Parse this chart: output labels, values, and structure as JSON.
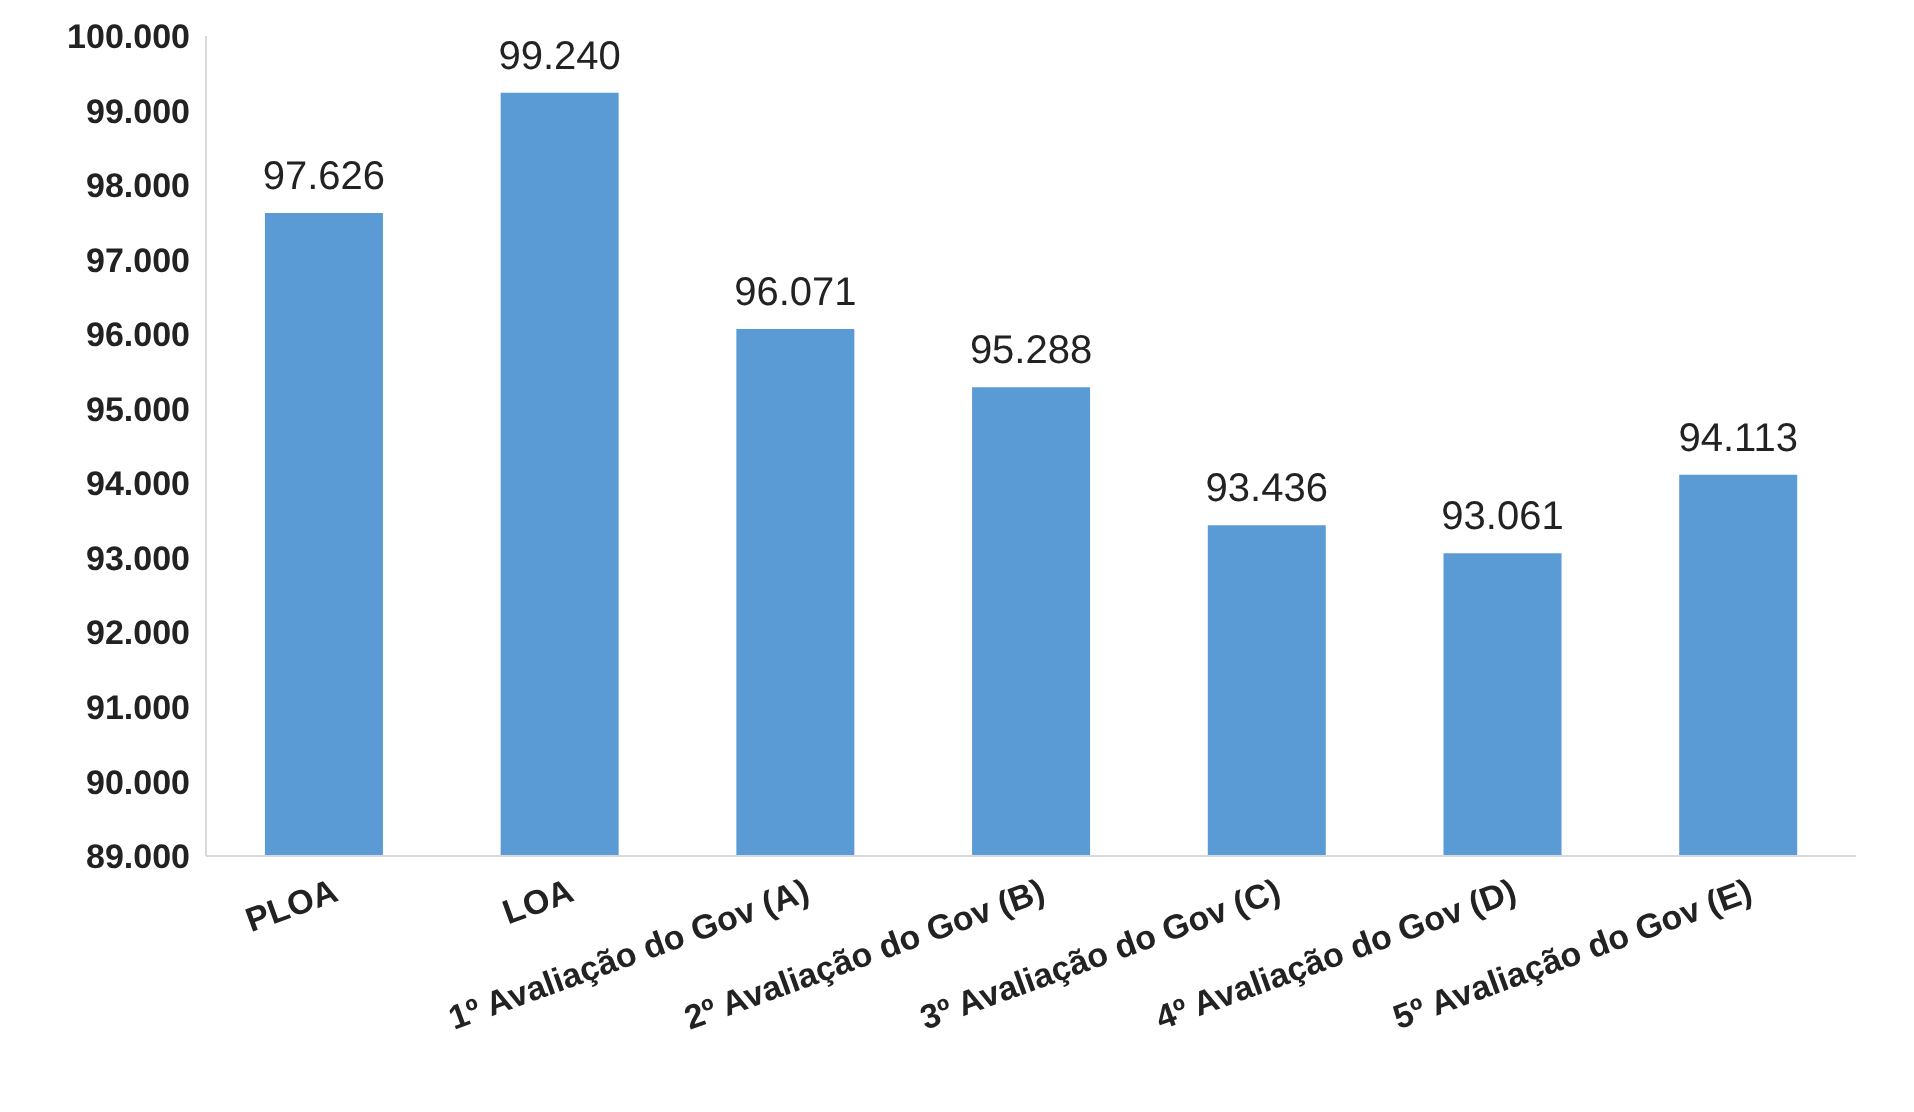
{
  "chart_data": {
    "type": "bar",
    "categories": [
      "PLOA",
      "LOA",
      "1º Avaliação do Gov (A)",
      "2º Avaliação do Gov (B)",
      "3º Avaliação do Gov (C)",
      "4º Avaliação do Gov (D)",
      "5º Avaliação do Gov (E)"
    ],
    "values": [
      97626,
      99240,
      96071,
      95288,
      93436,
      93061,
      94113
    ],
    "value_labels": [
      "97.626",
      "99.240",
      "96.071",
      "95.288",
      "93.436",
      "93.061",
      "94.113"
    ],
    "color": "#5b9bd5",
    "ylim": [
      89000,
      100000
    ],
    "yticks": [
      {
        "value": 89000,
        "label": "89.000"
      },
      {
        "value": 90000,
        "label": "90.000"
      },
      {
        "value": 91000,
        "label": "91.000"
      },
      {
        "value": 92000,
        "label": "92.000"
      },
      {
        "value": 93000,
        "label": "93.000"
      },
      {
        "value": 94000,
        "label": "94.000"
      },
      {
        "value": 95000,
        "label": "95.000"
      },
      {
        "value": 96000,
        "label": "96.000"
      },
      {
        "value": 97000,
        "label": "97.000"
      },
      {
        "value": 98000,
        "label": "98.000"
      },
      {
        "value": 99000,
        "label": "99.000"
      },
      {
        "value": 100000,
        "label": "100.000"
      }
    ],
    "grid": false,
    "legend": false
  }
}
